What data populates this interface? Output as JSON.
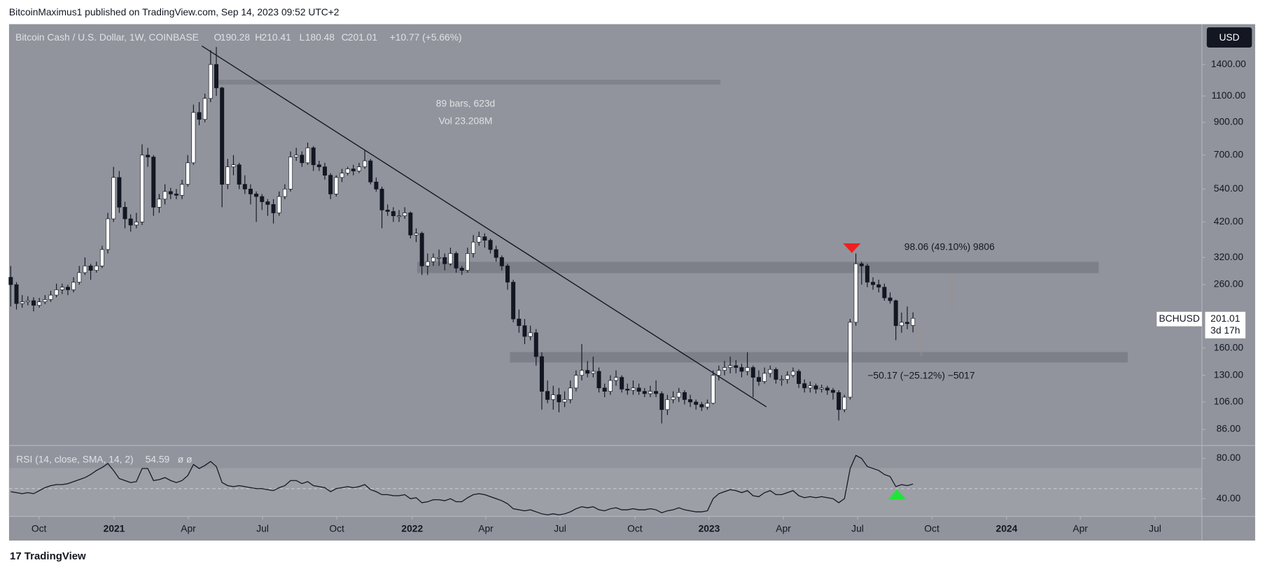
{
  "header": {
    "published": "BitcoinMaximus1 published on TradingView.com, Sep 14, 2023 09:52 UTC+2",
    "footer": "TradingView"
  },
  "chart_data": [
    {
      "type": "candlestick",
      "title": "Bitcoin Cash / U.S. Dollar, 1W, COINBASE",
      "ohlc_letters": [
        "O",
        "H",
        "L",
        "C"
      ],
      "change": "+10.77 (+5.66%)",
      "currency": "USD",
      "symbol": "BCHUSD",
      "countdown": "3d 17h",
      "annotations": [
        "89 bars, 623d",
        "Vol 23.208M",
        "98.06 (49.10%) 9806",
        "−50.17 (−25.12%) −5017"
      ],
      "log_scale": true,
      "up_color": "#ffffff",
      "down_color": "#131722",
      "ylim": [
        76,
        1905
      ],
      "yticks": [
        {
          "value": 1400,
          "label": "1400.00"
        },
        {
          "value": 1100,
          "label": "1100.00"
        },
        {
          "value": 900,
          "label": "900.00"
        },
        {
          "value": 700,
          "label": "700.00"
        },
        {
          "value": 540,
          "label": "540.00"
        },
        {
          "value": 420,
          "label": "420.00"
        },
        {
          "value": 320,
          "label": "320.00"
        },
        {
          "value": 260,
          "label": "260.00"
        },
        {
          "value": 160,
          "label": "160.00"
        },
        {
          "value": 130,
          "label": "130.00"
        },
        {
          "value": 106,
          "label": "106.00"
        },
        {
          "value": 86,
          "label": "86.00"
        }
      ],
      "xlim": [
        -0.3,
        208.6
      ],
      "xticks": [
        {
          "value": 4.94,
          "label": "Oct"
        },
        {
          "value": 18.1,
          "label": "2021"
        },
        {
          "value": 31.1,
          "label": "Apr"
        },
        {
          "value": 44.1,
          "label": "Jul"
        },
        {
          "value": 57.1,
          "label": "Oct"
        },
        {
          "value": 70.3,
          "label": "2022"
        },
        {
          "value": 83.2,
          "label": "Apr"
        },
        {
          "value": 96.2,
          "label": "Jul"
        },
        {
          "value": 109.3,
          "label": "Oct"
        },
        {
          "value": 122.3,
          "label": "2023"
        },
        {
          "value": 135.3,
          "label": "Apr"
        },
        {
          "value": 148.3,
          "label": "Jul"
        },
        {
          "value": 161.3,
          "label": "Oct"
        },
        {
          "value": 174.4,
          "label": "2024"
        },
        {
          "value": 187.3,
          "label": "Apr"
        },
        {
          "value": 200.4,
          "label": "Jul"
        }
      ],
      "candles": [
        [
          275,
          300,
          220,
          260
        ],
        [
          260,
          265,
          215,
          225
        ],
        [
          225,
          240,
          218,
          228
        ],
        [
          228,
          238,
          222,
          230
        ],
        [
          230,
          236,
          212,
          222
        ],
        [
          222,
          235,
          218,
          228
        ],
        [
          228,
          240,
          224,
          232
        ],
        [
          232,
          248,
          228,
          240
        ],
        [
          240,
          262,
          236,
          250
        ],
        [
          250,
          262,
          242,
          255
        ],
        [
          255,
          260,
          240,
          250
        ],
        [
          250,
          275,
          245,
          265
        ],
        [
          265,
          300,
          260,
          285
        ],
        [
          285,
          320,
          280,
          300
        ],
        [
          300,
          305,
          270,
          290
        ],
        [
          290,
          310,
          285,
          300
        ],
        [
          300,
          350,
          295,
          340
        ],
        [
          340,
          450,
          330,
          430
        ],
        [
          430,
          640,
          420,
          590
        ],
        [
          590,
          620,
          450,
          470
        ],
        [
          470,
          490,
          400,
          430
        ],
        [
          430,
          445,
          390,
          410
        ],
        [
          410,
          450,
          400,
          420
        ],
        [
          420,
          760,
          410,
          700
        ],
        [
          700,
          740,
          640,
          690
        ],
        [
          690,
          700,
          440,
          470
        ],
        [
          470,
          520,
          450,
          500
        ],
        [
          500,
          560,
          480,
          530
        ],
        [
          530,
          545,
          500,
          520
        ],
        [
          520,
          540,
          500,
          515
        ],
        [
          515,
          580,
          500,
          560
        ],
        [
          560,
          700,
          550,
          660
        ],
        [
          660,
          1030,
          650,
          970
        ],
        [
          970,
          1050,
          880,
          920
        ],
        [
          920,
          1120,
          900,
          1080
        ],
        [
          1080,
          1560,
          1050,
          1400
        ],
        [
          1400,
          1600,
          1100,
          1170
        ],
        [
          1170,
          1180,
          470,
          560
        ],
        [
          560,
          680,
          540,
          640
        ],
        [
          640,
          700,
          600,
          650
        ],
        [
          650,
          660,
          540,
          560
        ],
        [
          560,
          600,
          520,
          540
        ],
        [
          540,
          560,
          480,
          520
        ],
        [
          520,
          530,
          420,
          510
        ],
        [
          510,
          520,
          460,
          490
        ],
        [
          490,
          500,
          440,
          480
        ],
        [
          480,
          500,
          415,
          450
        ],
        [
          450,
          530,
          440,
          510
        ],
        [
          510,
          560,
          500,
          540
        ],
        [
          540,
          720,
          530,
          690
        ],
        [
          690,
          740,
          670,
          700
        ],
        [
          700,
          720,
          640,
          660
        ],
        [
          660,
          770,
          650,
          740
        ],
        [
          740,
          750,
          620,
          650
        ],
        [
          650,
          670,
          620,
          640
        ],
        [
          640,
          660,
          580,
          600
        ],
        [
          600,
          610,
          500,
          520
        ],
        [
          520,
          600,
          510,
          590
        ],
        [
          590,
          630,
          570,
          610
        ],
        [
          610,
          640,
          600,
          630
        ],
        [
          630,
          650,
          600,
          620
        ],
        [
          620,
          660,
          610,
          640
        ],
        [
          640,
          730,
          630,
          670
        ],
        [
          670,
          680,
          560,
          570
        ],
        [
          570,
          590,
          530,
          540
        ],
        [
          540,
          550,
          400,
          460
        ],
        [
          460,
          480,
          440,
          455
        ],
        [
          455,
          470,
          420,
          440
        ],
        [
          440,
          460,
          420,
          440
        ],
        [
          440,
          470,
          430,
          450
        ],
        [
          450,
          455,
          370,
          380
        ],
        [
          380,
          400,
          360,
          385
        ],
        [
          385,
          390,
          280,
          300
        ],
        [
          300,
          330,
          280,
          310
        ],
        [
          310,
          330,
          300,
          320
        ],
        [
          320,
          340,
          300,
          320
        ],
        [
          320,
          330,
          290,
          305
        ],
        [
          305,
          345,
          300,
          330
        ],
        [
          330,
          335,
          285,
          295
        ],
        [
          295,
          300,
          280,
          290
        ],
        [
          290,
          345,
          285,
          330
        ],
        [
          330,
          380,
          320,
          360
        ],
        [
          360,
          390,
          350,
          375
        ],
        [
          375,
          385,
          345,
          365
        ],
        [
          365,
          370,
          330,
          340
        ],
        [
          340,
          350,
          310,
          320
        ],
        [
          320,
          325,
          290,
          300
        ],
        [
          300,
          305,
          250,
          265
        ],
        [
          265,
          270,
          195,
          200
        ],
        [
          200,
          215,
          180,
          190
        ],
        [
          190,
          200,
          165,
          175
        ],
        [
          175,
          190,
          170,
          180
        ],
        [
          180,
          185,
          140,
          150
        ],
        [
          150,
          155,
          100,
          115
        ],
        [
          115,
          125,
          105,
          108
        ],
        [
          108,
          120,
          100,
          112
        ],
        [
          112,
          118,
          98,
          106
        ],
        [
          106,
          115,
          102,
          108
        ],
        [
          108,
          125,
          105,
          118
        ],
        [
          118,
          135,
          115,
          130
        ],
        [
          130,
          165,
          125,
          135
        ],
        [
          135,
          145,
          128,
          132
        ],
        [
          132,
          150,
          128,
          134
        ],
        [
          134,
          138,
          114,
          118
        ],
        [
          118,
          122,
          110,
          115
        ],
        [
          115,
          130,
          112,
          125
        ],
        [
          125,
          135,
          120,
          128
        ],
        [
          128,
          130,
          114,
          117
        ],
        [
          117,
          122,
          112,
          116
        ],
        [
          116,
          125,
          112,
          118
        ],
        [
          118,
          122,
          112,
          115
        ],
        [
          115,
          118,
          110,
          113
        ],
        [
          113,
          120,
          110,
          115
        ],
        [
          115,
          125,
          110,
          113
        ],
        [
          113,
          115,
          90,
          100
        ],
        [
          100,
          112,
          96,
          108
        ],
        [
          108,
          115,
          105,
          110
        ],
        [
          110,
          118,
          106,
          114
        ],
        [
          114,
          116,
          104,
          108
        ],
        [
          108,
          112,
          102,
          106
        ],
        [
          106,
          108,
          100,
          104
        ],
        [
          104,
          106,
          99,
          102
        ],
        [
          102,
          108,
          100,
          105
        ],
        [
          105,
          135,
          104,
          130
        ],
        [
          130,
          140,
          125,
          135
        ],
        [
          135,
          145,
          130,
          138
        ],
        [
          138,
          150,
          132,
          140
        ],
        [
          140,
          146,
          132,
          138
        ],
        [
          138,
          142,
          128,
          134
        ],
        [
          134,
          155,
          130,
          138
        ],
        [
          138,
          140,
          110,
          128
        ],
        [
          128,
          135,
          120,
          124
        ],
        [
          124,
          138,
          122,
          132
        ],
        [
          132,
          140,
          128,
          136
        ],
        [
          136,
          138,
          122,
          126
        ],
        [
          126,
          130,
          120,
          126
        ],
        [
          126,
          134,
          122,
          130
        ],
        [
          130,
          138,
          128,
          134
        ],
        [
          134,
          136,
          118,
          122
        ],
        [
          122,
          126,
          114,
          118
        ],
        [
          118,
          124,
          114,
          120
        ],
        [
          120,
          122,
          113,
          117
        ],
        [
          117,
          121,
          114,
          118
        ],
        [
          118,
          120,
          112,
          116
        ],
        [
          116,
          118,
          108,
          114
        ],
        [
          114,
          116,
          92,
          100
        ],
        [
          100,
          112,
          98,
          110
        ],
        [
          110,
          200,
          108,
          195
        ],
        [
          195,
          330,
          190,
          305
        ],
        [
          305,
          310,
          260,
          300
        ],
        [
          300,
          305,
          255,
          265
        ],
        [
          265,
          275,
          250,
          260
        ],
        [
          260,
          270,
          245,
          255
        ],
        [
          255,
          262,
          230,
          235
        ],
        [
          235,
          245,
          225,
          230
        ],
        [
          230,
          232,
          170,
          190
        ],
        [
          190,
          210,
          180,
          195
        ],
        [
          195,
          220,
          185,
          193
        ],
        [
          190.28,
          210.41,
          180.48,
          201.01
        ]
      ]
    },
    {
      "type": "line",
      "title": "RSI (14, close, SMA, 14, 2)",
      "extra": "ø ø",
      "color": "#131722",
      "ylim": [
        22.4,
        92.8
      ],
      "band": [
        30,
        70
      ],
      "midline": 50,
      "yticks": [
        {
          "value": 80,
          "label": "80.00"
        },
        {
          "value": 40,
          "label": "40.00"
        }
      ],
      "values": [
        47,
        46,
        45,
        46,
        45,
        48,
        51,
        53,
        54,
        54,
        55,
        57,
        59,
        61,
        64,
        68,
        71,
        75,
        68,
        60,
        58,
        56,
        57,
        70,
        70,
        58,
        59,
        61,
        58,
        56,
        58,
        63,
        74,
        70,
        73,
        77,
        72,
        56,
        53,
        52,
        53,
        52,
        51,
        50,
        50,
        49,
        48,
        51,
        53,
        58,
        58,
        55,
        57,
        53,
        52,
        51,
        47,
        50,
        51,
        52,
        51,
        52,
        54,
        49,
        47,
        44,
        44,
        43,
        43,
        44,
        40,
        41,
        36,
        37,
        39,
        39,
        38,
        40,
        37,
        37,
        41,
        44,
        45,
        44,
        42,
        40,
        38,
        35,
        30,
        29,
        28,
        29,
        27,
        25,
        24,
        25,
        24,
        25,
        27,
        30,
        32,
        31,
        32,
        29,
        28,
        30,
        31,
        29,
        29,
        30,
        29,
        29,
        30,
        29,
        26,
        28,
        29,
        31,
        29,
        28,
        27,
        27,
        28,
        40,
        45,
        47,
        49,
        48,
        46,
        48,
        43,
        42,
        46,
        48,
        44,
        44,
        46,
        48,
        43,
        41,
        42,
        41,
        42,
        41,
        40,
        36,
        40,
        70,
        83,
        80,
        72,
        70,
        68,
        64,
        62,
        52,
        54,
        53,
        54.59
      ]
    }
  ]
}
